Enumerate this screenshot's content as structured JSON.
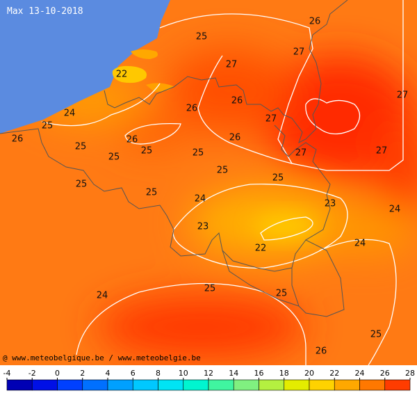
{
  "title": "Max 13-10-2018",
  "credit": "@ www.meteobelgique.be / www.meteobelgie.be",
  "contour_labels": [
    26,
    25,
    27,
    22,
    27,
    26,
    26,
    27,
    27,
    24,
    25,
    26,
    25,
    26,
    25,
    25,
    25,
    26,
    27,
    27,
    25,
    25,
    25,
    25,
    24,
    23,
    24,
    23,
    22,
    24,
    25,
    25,
    24,
    25,
    26
  ],
  "colorbar": {
    "ticks": [
      -4,
      -2,
      0,
      2,
      4,
      6,
      8,
      10,
      12,
      14,
      16,
      18,
      20,
      22,
      24,
      26,
      28
    ],
    "colors": [
      "#0000b4",
      "#0010e6",
      "#0040ff",
      "#0070ff",
      "#00a0ff",
      "#00c8ff",
      "#00e4f4",
      "#00f5d0",
      "#40f5a0",
      "#80f080",
      "#b4f040",
      "#e4ec00",
      "#ffd200",
      "#ffa800",
      "#ff7800",
      "#ff3c00"
    ]
  }
}
